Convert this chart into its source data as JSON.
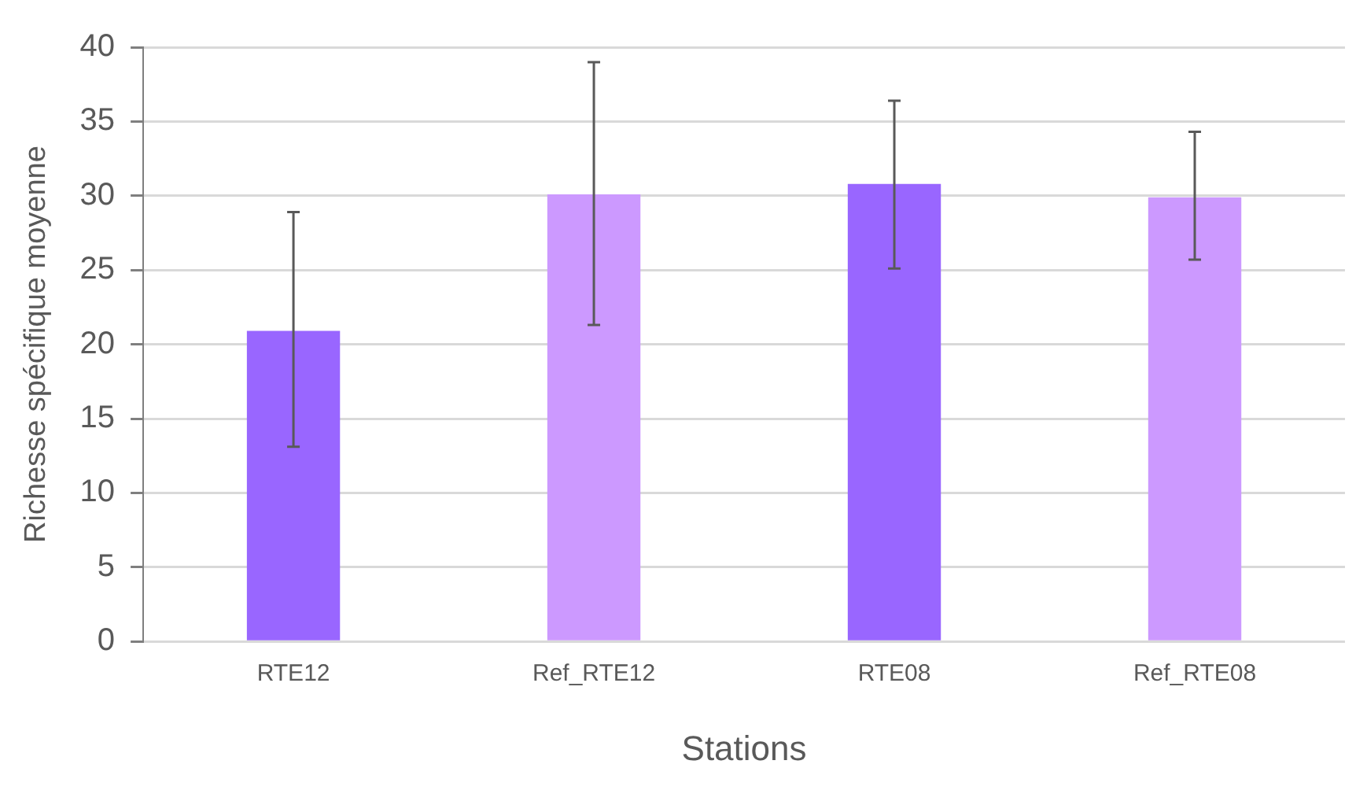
{
  "chart_data": {
    "type": "bar",
    "xlabel": "Stations",
    "ylabel": "Richesse spécifique moyenne",
    "categories": [
      "RTE12",
      "Ref_RTE12",
      "RTE08",
      "Ref_RTE08"
    ],
    "values": [
      20.9,
      30.1,
      30.8,
      29.9
    ],
    "colors": [
      "#9966ff",
      "#cc99ff",
      "#9966ff",
      "#cc99ff"
    ],
    "errors": [
      [
        13.1,
        28.9
      ],
      [
        21.3,
        39.0
      ],
      [
        25.1,
        36.4
      ],
      [
        25.7,
        34.3
      ]
    ],
    "ylim": [
      0,
      40
    ],
    "yticks": [
      0,
      5,
      10,
      15,
      20,
      25,
      30,
      35,
      40
    ],
    "grid": "y",
    "legend": false
  }
}
